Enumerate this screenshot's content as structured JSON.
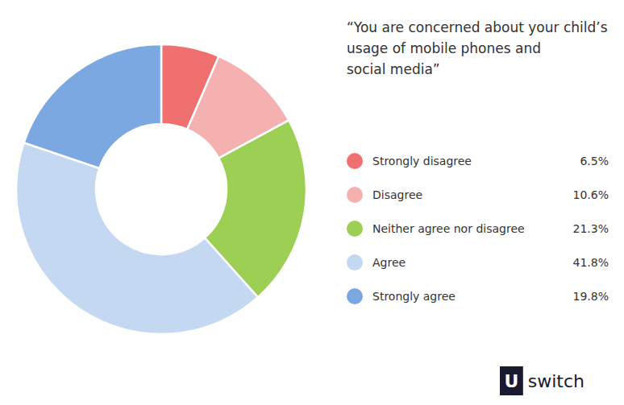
{
  "chart_data": {
    "type": "pie",
    "title": "“You are concerned about your child’s\nusage of mobile phones and\nsocial media”",
    "categories": [
      "Strongly disagree",
      "Disagree",
      "Neither agree nor disagree",
      "Agree",
      "Strongly agree"
    ],
    "values": [
      6.5,
      10.6,
      21.3,
      41.8,
      19.8
    ],
    "value_labels": [
      "6.5%",
      "10.6%",
      "21.3%",
      "41.8%",
      "19.8%"
    ],
    "colors": [
      "#f07070",
      "#f5b0b0",
      "#9ecf55",
      "#c5d8f2",
      "#7ba8e0"
    ],
    "legend": "right",
    "annotations": [
      "U",
      "switch"
    ]
  }
}
